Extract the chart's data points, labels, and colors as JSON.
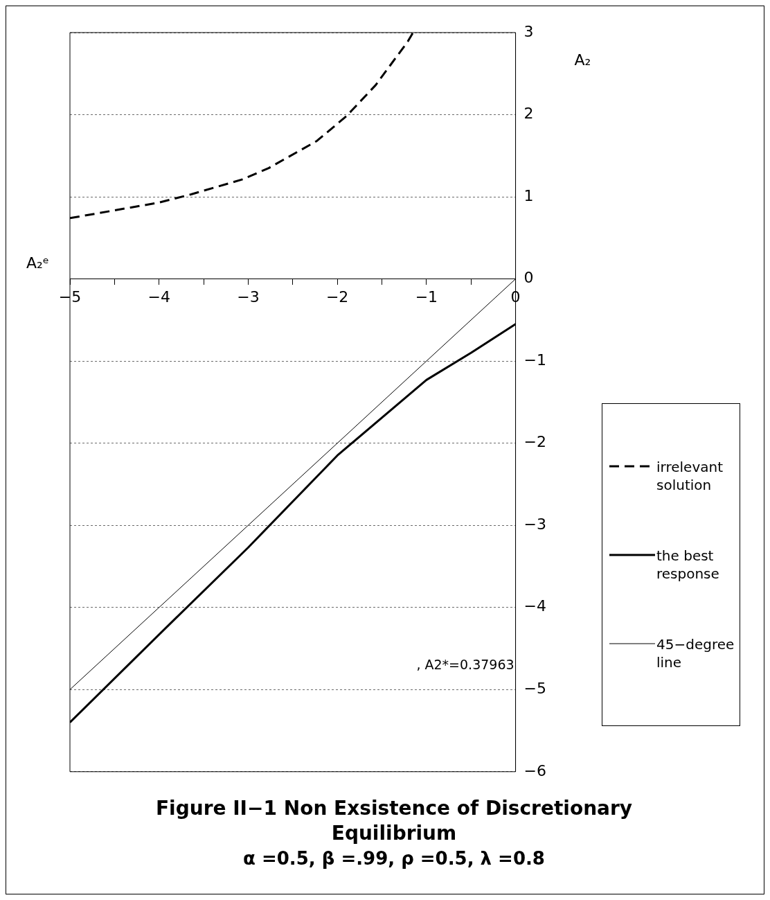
{
  "chart_data": {
    "type": "line",
    "title": "Figure II−1 Non Exsistence of Discretionary Equilibrium",
    "subtitle": "α =0.5, β =.99, ρ =0.5, λ =0.8",
    "xlabel": "A₂ᵉ",
    "ylabel": "A₂",
    "annotations": [
      ", A2*=0.37963"
    ],
    "series": [
      {
        "name": "irrelevant solution",
        "color": "#000000",
        "line_style": "dashed",
        "x": [
          -5,
          -4,
          -3.64,
          -3.07,
          -2.77,
          -2.23,
          -1.9,
          -1.57,
          -1.21,
          -1.15
        ],
        "values": [
          0.74,
          0.93,
          1.03,
          1.21,
          1.35,
          1.68,
          1.98,
          2.36,
          2.89,
          3
        ]
      },
      {
        "name": "the best response",
        "color": "#000000",
        "line_style": "solid",
        "x": [
          -5,
          -4,
          -3,
          -2,
          -1,
          -0.5,
          0
        ],
        "values": [
          -5.4,
          -4.33,
          -3.27,
          -2.15,
          -1.23,
          -0.9,
          -0.55
        ]
      },
      {
        "name": "45−degree line",
        "color": "#000000",
        "line_style": "solid",
        "x": [
          -5,
          0
        ],
        "values": [
          -5,
          0
        ]
      }
    ],
    "xlim": [
      -5,
      0
    ],
    "xticks": [
      -5,
      {
        "value": -4.5,
        "label": null
      },
      -4,
      {
        "value": -3.5,
        "label": null
      },
      -3,
      {
        "value": -2.5,
        "label": null
      },
      -2,
      {
        "value": -1.5,
        "label": null
      },
      -1,
      {
        "value": -0.5,
        "label": null
      },
      0
    ],
    "ylim": [
      -6,
      3
    ],
    "yticks": [
      -6,
      -5,
      -4,
      -3,
      -2,
      -1,
      0,
      1,
      2,
      3
    ],
    "grid": "y",
    "legend": "right",
    "marker": "none"
  }
}
